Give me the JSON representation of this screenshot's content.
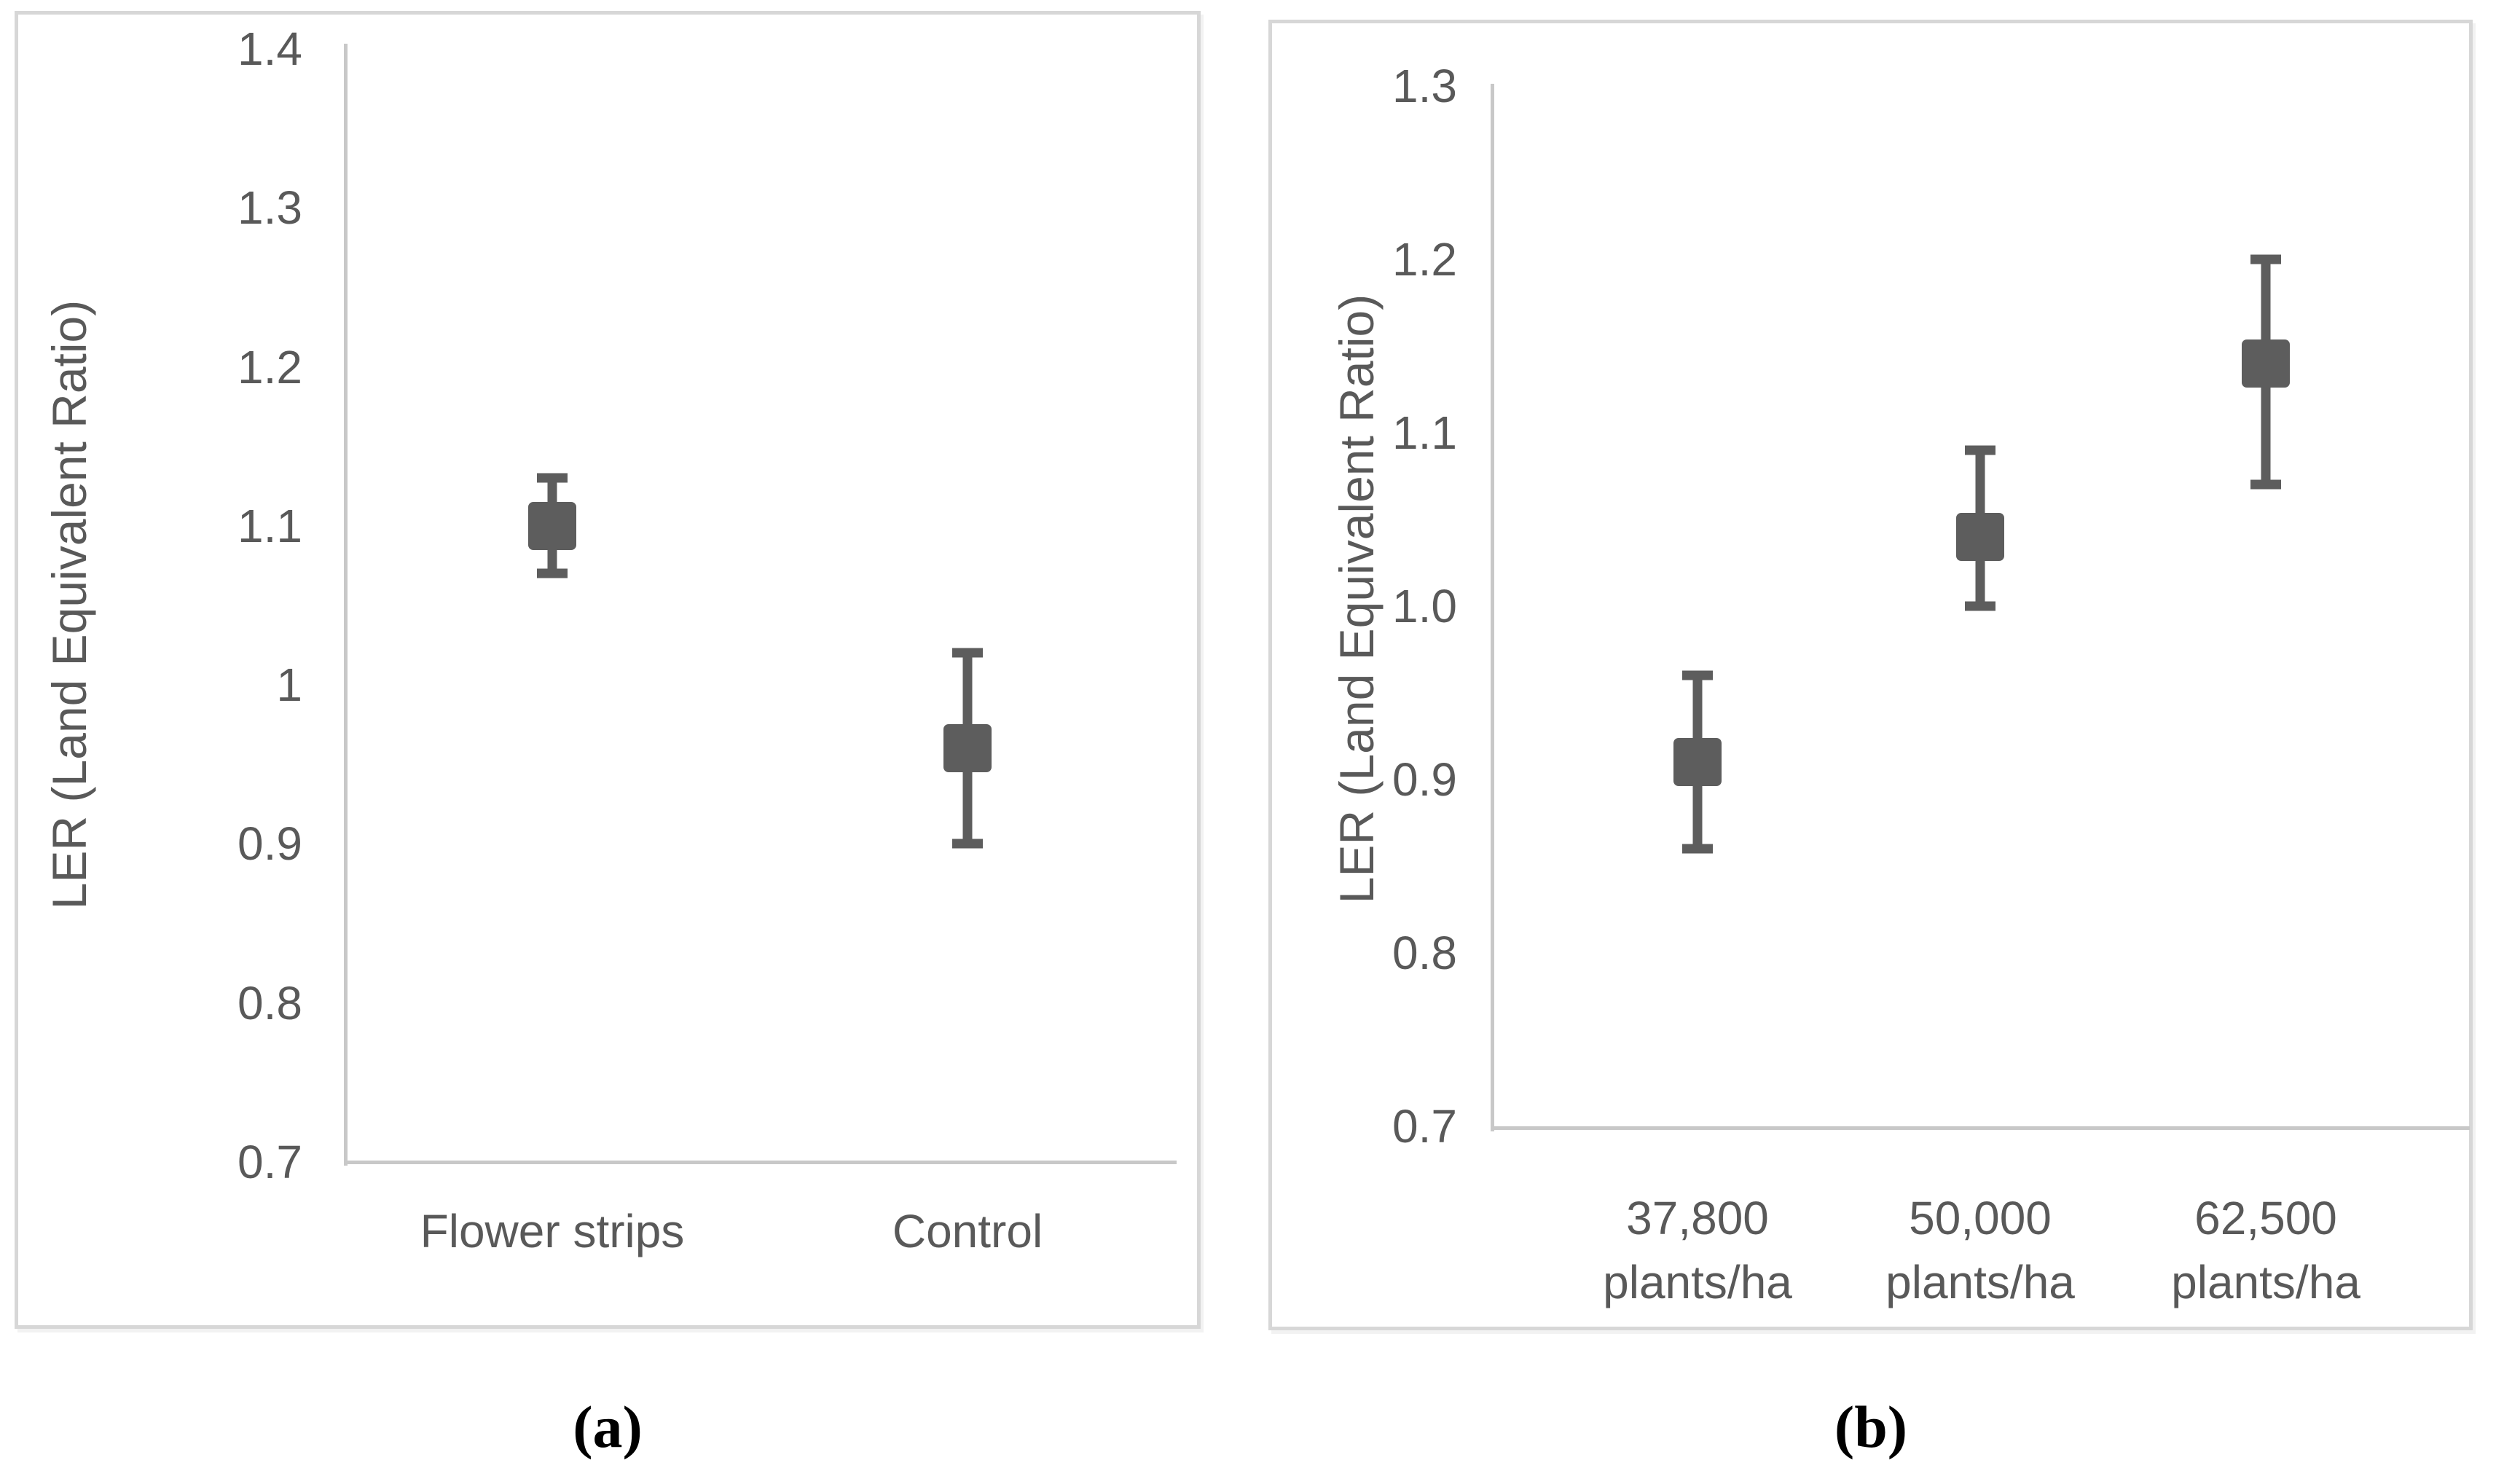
{
  "page": {
    "background": "#ffffff"
  },
  "colors": {
    "marker_fill": "#5d5d5d",
    "error_bar": "#5d5d5d",
    "axis_line": "#c8c8c8",
    "panel_border": "#d7d7d7",
    "tick_text": "#595959",
    "caption_text": "#000000"
  },
  "chart_data": [
    {
      "id": "a",
      "type": "scatter",
      "subtype": "mean-with-error-bars",
      "caption": "(a)",
      "title": "",
      "xlabel": "",
      "ylabel": "LER (Land Equivalent Ratio)",
      "ylim": [
        0.7,
        1.4
      ],
      "grid": false,
      "legend": "none",
      "marker_shape": "square",
      "yticks": [
        {
          "label": "1.4",
          "value": 1.4
        },
        {
          "label": "1.3",
          "value": 1.3
        },
        {
          "label": "1.2",
          "value": 1.2
        },
        {
          "label": "1.1",
          "value": 1.1
        },
        {
          "label": "1",
          "value": 1.0
        },
        {
          "label": "0.9",
          "value": 0.9
        },
        {
          "label": "0.8",
          "value": 0.8
        },
        {
          "label": "0.7",
          "value": 0.7
        }
      ],
      "categories": [
        "Flower strips",
        "Control"
      ],
      "category_lines": [
        [
          "Flower strips"
        ],
        [
          "Control"
        ]
      ],
      "series": [
        {
          "name": "LER",
          "points": [
            {
              "category": "Flower strips",
              "mean": 1.1,
              "err_low": 1.07,
              "err_high": 1.13
            },
            {
              "category": "Control",
              "mean": 0.96,
              "err_low": 0.9,
              "err_high": 1.02
            }
          ]
        }
      ]
    },
    {
      "id": "b",
      "type": "scatter",
      "subtype": "mean-with-error-bars",
      "caption": "(b)",
      "title": "",
      "xlabel": "",
      "ylabel": "LER (Land Equivalent Ratio)",
      "ylim": [
        0.7,
        1.3
      ],
      "grid": false,
      "legend": "none",
      "marker_shape": "square",
      "yticks": [
        {
          "label": "1.3",
          "value": 1.3
        },
        {
          "label": "1.2",
          "value": 1.2
        },
        {
          "label": "1.1",
          "value": 1.1
        },
        {
          "label": "1.0",
          "value": 1.0
        },
        {
          "label": "0.9",
          "value": 0.9
        },
        {
          "label": "0.8",
          "value": 0.8
        },
        {
          "label": "0.7",
          "value": 0.7
        }
      ],
      "categories": [
        "37,800 plants/ha",
        "50,000 plants/ha",
        "62,500 plants/ha"
      ],
      "category_lines": [
        [
          "37,800",
          "plants/ha"
        ],
        [
          "50,000",
          "plants/ha"
        ],
        [
          "62,500",
          "plants/ha"
        ]
      ],
      "series": [
        {
          "name": "LER",
          "points": [
            {
              "category": "37,800 plants/ha",
              "mean": 0.91,
              "err_low": 0.86,
              "err_high": 0.96
            },
            {
              "category": "50,000 plants/ha",
              "mean": 1.04,
              "err_low": 1.0,
              "err_high": 1.09
            },
            {
              "category": "62,500 plants/ha",
              "mean": 1.14,
              "err_low": 1.07,
              "err_high": 1.2
            }
          ]
        }
      ]
    }
  ]
}
